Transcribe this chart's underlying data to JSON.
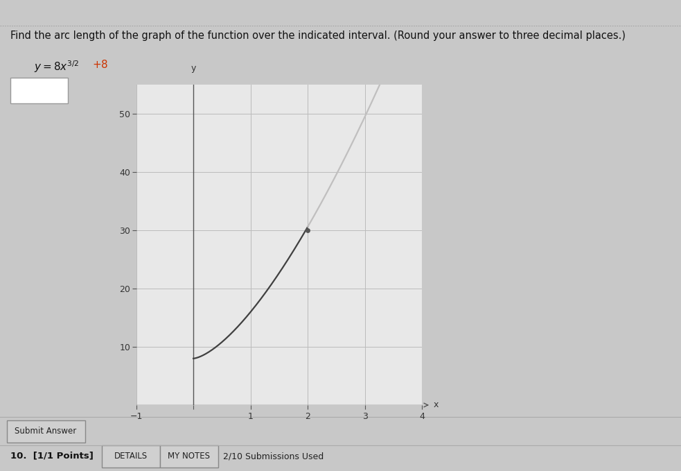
{
  "title_line1": "Find the arc length of the graph of the function over the indicated interval. (Round your answer to three decimal places.)",
  "background_color": "#c8c8c8",
  "panel_color": "#d8d8d8",
  "plot_bg_color": "#e8e8e8",
  "curve_color_dark": "#404040",
  "curve_color_light": "#c0bfbf",
  "dot_color": "#555555",
  "text_color": "#1a1a1a",
  "title_color": "#111111",
  "grid_color": "#bbbbbb",
  "axis_color": "#555555",
  "tick_color": "#333333",
  "equation_color": "#cc3300",
  "x_min": -1,
  "x_max": 4,
  "y_min": 0,
  "y_max": 55,
  "y_ticks": [
    10,
    20,
    30,
    40,
    50
  ],
  "x_label": "x",
  "y_label": "y",
  "dot_x": 2,
  "dot_y": 30,
  "submit_button_text": "Submit Answer",
  "bottom_text": "10.  [1/1 Points]",
  "details_btn": "DETAILS",
  "notes_btn": "MY NOTES",
  "submissions_text": "2/10 Submissions Used",
  "font_size_title": 10.5,
  "font_size_tick": 9,
  "font_size_bottom": 9
}
